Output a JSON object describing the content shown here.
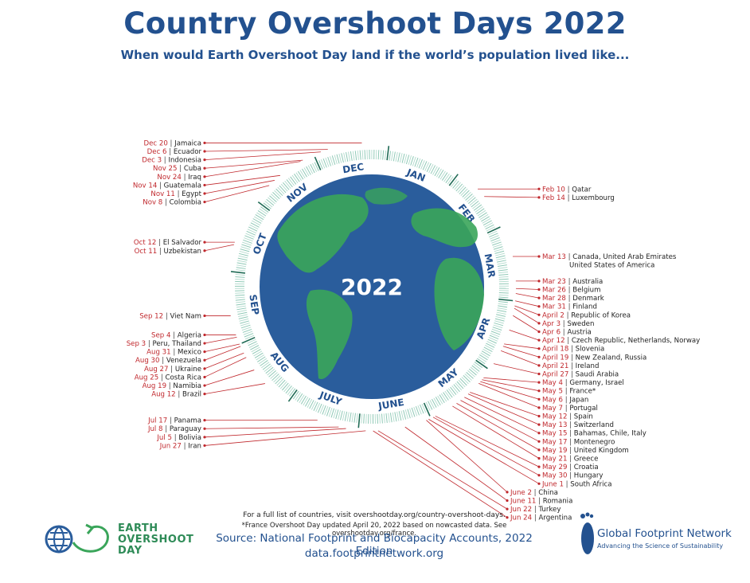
{
  "header": {
    "title": "Country Overshoot Days 2022",
    "subtitle": "When would Earth Overshoot Day land if the world’s population lived like..."
  },
  "globe": {
    "year_label": "2022",
    "colors": {
      "ocean": "#2a5d9c",
      "land": "#3aa55a",
      "accent": "#c0282d",
      "ring": "#2d8f6f"
    }
  },
  "months": [
    "JAN",
    "FEB",
    "MAR",
    "APR",
    "MAY",
    "JUNE",
    "JULY",
    "AUG",
    "SEP",
    "OCT",
    "NOV",
    "DEC"
  ],
  "countries": [
    {
      "date": "Dec 20",
      "name": "Jamaica",
      "day": 354
    },
    {
      "date": "Dec 6",
      "name": "Ecuador",
      "day": 340
    },
    {
      "date": "Dec 3",
      "name": "Indonesia",
      "day": 337
    },
    {
      "date": "Nov 25",
      "name": "Cuba",
      "day": 329
    },
    {
      "date": "Nov 24",
      "name": "Iraq",
      "day": 328
    },
    {
      "date": "Nov 14",
      "name": "Guatemala",
      "day": 318
    },
    {
      "date": "Nov 11",
      "name": "Egypt",
      "day": 315
    },
    {
      "date": "Nov 8",
      "name": "Colombia",
      "day": 312
    },
    {
      "date": "Oct 12",
      "name": "El Salvador",
      "day": 285
    },
    {
      "date": "Oct 11",
      "name": "Uzbekistan",
      "day": 284
    },
    {
      "date": "Sep 12",
      "name": "Viet Nam",
      "day": 255
    },
    {
      "date": "Sep 4",
      "name": "Algeria",
      "day": 247
    },
    {
      "date": "Sep 3",
      "name": "Peru, Thailand",
      "day": 246
    },
    {
      "date": "Aug 31",
      "name": "Mexico",
      "day": 243
    },
    {
      "date": "Aug 30",
      "name": "Venezuela",
      "day": 242
    },
    {
      "date": "Aug 27",
      "name": "Ukraine",
      "day": 239
    },
    {
      "date": "Aug 25",
      "name": "Costa Rica",
      "day": 237
    },
    {
      "date": "Aug 19",
      "name": "Namibia",
      "day": 231
    },
    {
      "date": "Aug 12",
      "name": "Brazil",
      "day": 224
    },
    {
      "date": "Jul 17",
      "name": "Panama",
      "day": 198
    },
    {
      "date": "Jul 8",
      "name": "Paraguay",
      "day": 189
    },
    {
      "date": "Jul 5",
      "name": "Bolivia",
      "day": 186
    },
    {
      "date": "Jun 27",
      "name": "Iran",
      "day": 178
    },
    {
      "date": "Jun 24",
      "name": "Argentina",
      "day": 175
    },
    {
      "date": "Jun 22",
      "name": "Turkey",
      "day": 173
    },
    {
      "date": "June 11",
      "name": "Romania",
      "day": 162
    },
    {
      "date": "June 2",
      "name": "China",
      "day": 153
    },
    {
      "date": "June 1",
      "name": "South Africa",
      "day": 152
    },
    {
      "date": "May 30",
      "name": "Hungary",
      "day": 150
    },
    {
      "date": "May 29",
      "name": "Croatia",
      "day": 149
    },
    {
      "date": "May 21",
      "name": "Greece",
      "day": 141
    },
    {
      "date": "May 19",
      "name": "United Kingdom",
      "day": 139
    },
    {
      "date": "May 17",
      "name": "Montenegro",
      "day": 137
    },
    {
      "date": "May 15",
      "name": "Bahamas, Chile, Italy",
      "day": 135
    },
    {
      "date": "May 13",
      "name": "Switzerland",
      "day": 133
    },
    {
      "date": "May 12",
      "name": "Spain",
      "day": 132
    },
    {
      "date": "May 7",
      "name": "Portugal",
      "day": 127
    },
    {
      "date": "May 6",
      "name": "Japan",
      "day": 126
    },
    {
      "date": "May 5",
      "name": "France*",
      "day": 125
    },
    {
      "date": "May 4",
      "name": "Germany, Israel",
      "day": 124
    },
    {
      "date": "April 27",
      "name": "Saudi Arabia",
      "day": 117
    },
    {
      "date": "April 21",
      "name": "Ireland",
      "day": 111
    },
    {
      "date": "April 19",
      "name": "New Zealand, Russia",
      "day": 109
    },
    {
      "date": "April 18",
      "name": "Slovenia",
      "day": 108
    },
    {
      "date": "Apr 12",
      "name": "Czech Republic, Netherlands, Norway",
      "day": 102
    },
    {
      "date": "Apr 6",
      "name": "Austria",
      "day": 96
    },
    {
      "date": "Apr 3",
      "name": "Sweden",
      "day": 93
    },
    {
      "date": "April 2",
      "name": "Republic of Korea",
      "day": 92
    },
    {
      "date": "Mar 31",
      "name": "Finland",
      "day": 90
    },
    {
      "date": "Mar 28",
      "name": "Denmark",
      "day": 87
    },
    {
      "date": "Mar 26",
      "name": "Belgium",
      "day": 85
    },
    {
      "date": "Mar 23",
      "name": "Australia",
      "day": 82
    },
    {
      "date": "Mar 13",
      "name": "Canada, United Arab Emirates",
      "name2": "United States of America",
      "day": 72
    },
    {
      "date": "Feb 14",
      "name": "Luxembourg",
      "day": 45
    },
    {
      "date": "Feb 10",
      "name": "Qatar",
      "day": 41
    }
  ],
  "footer": {
    "note1": "For a full list of countries, visit overshootday.org/country-overshoot-days.",
    "note2": "*France Overshoot Day updated April 20, 2022 based on nowcasted data. See overshootday.org/france.",
    "source": "Source: National Footprint and Biocapacity Accounts, 2022 Edition",
    "source_url": "data.footprintnetwork.org"
  },
  "logos": {
    "eod_line1": "EARTH",
    "eod_line2": "OVERSHOOT",
    "eod_line3": "DAY",
    "gfn_name": "Global Footprint Network",
    "gfn_tagline": "Advancing the Science of Sustainability"
  }
}
